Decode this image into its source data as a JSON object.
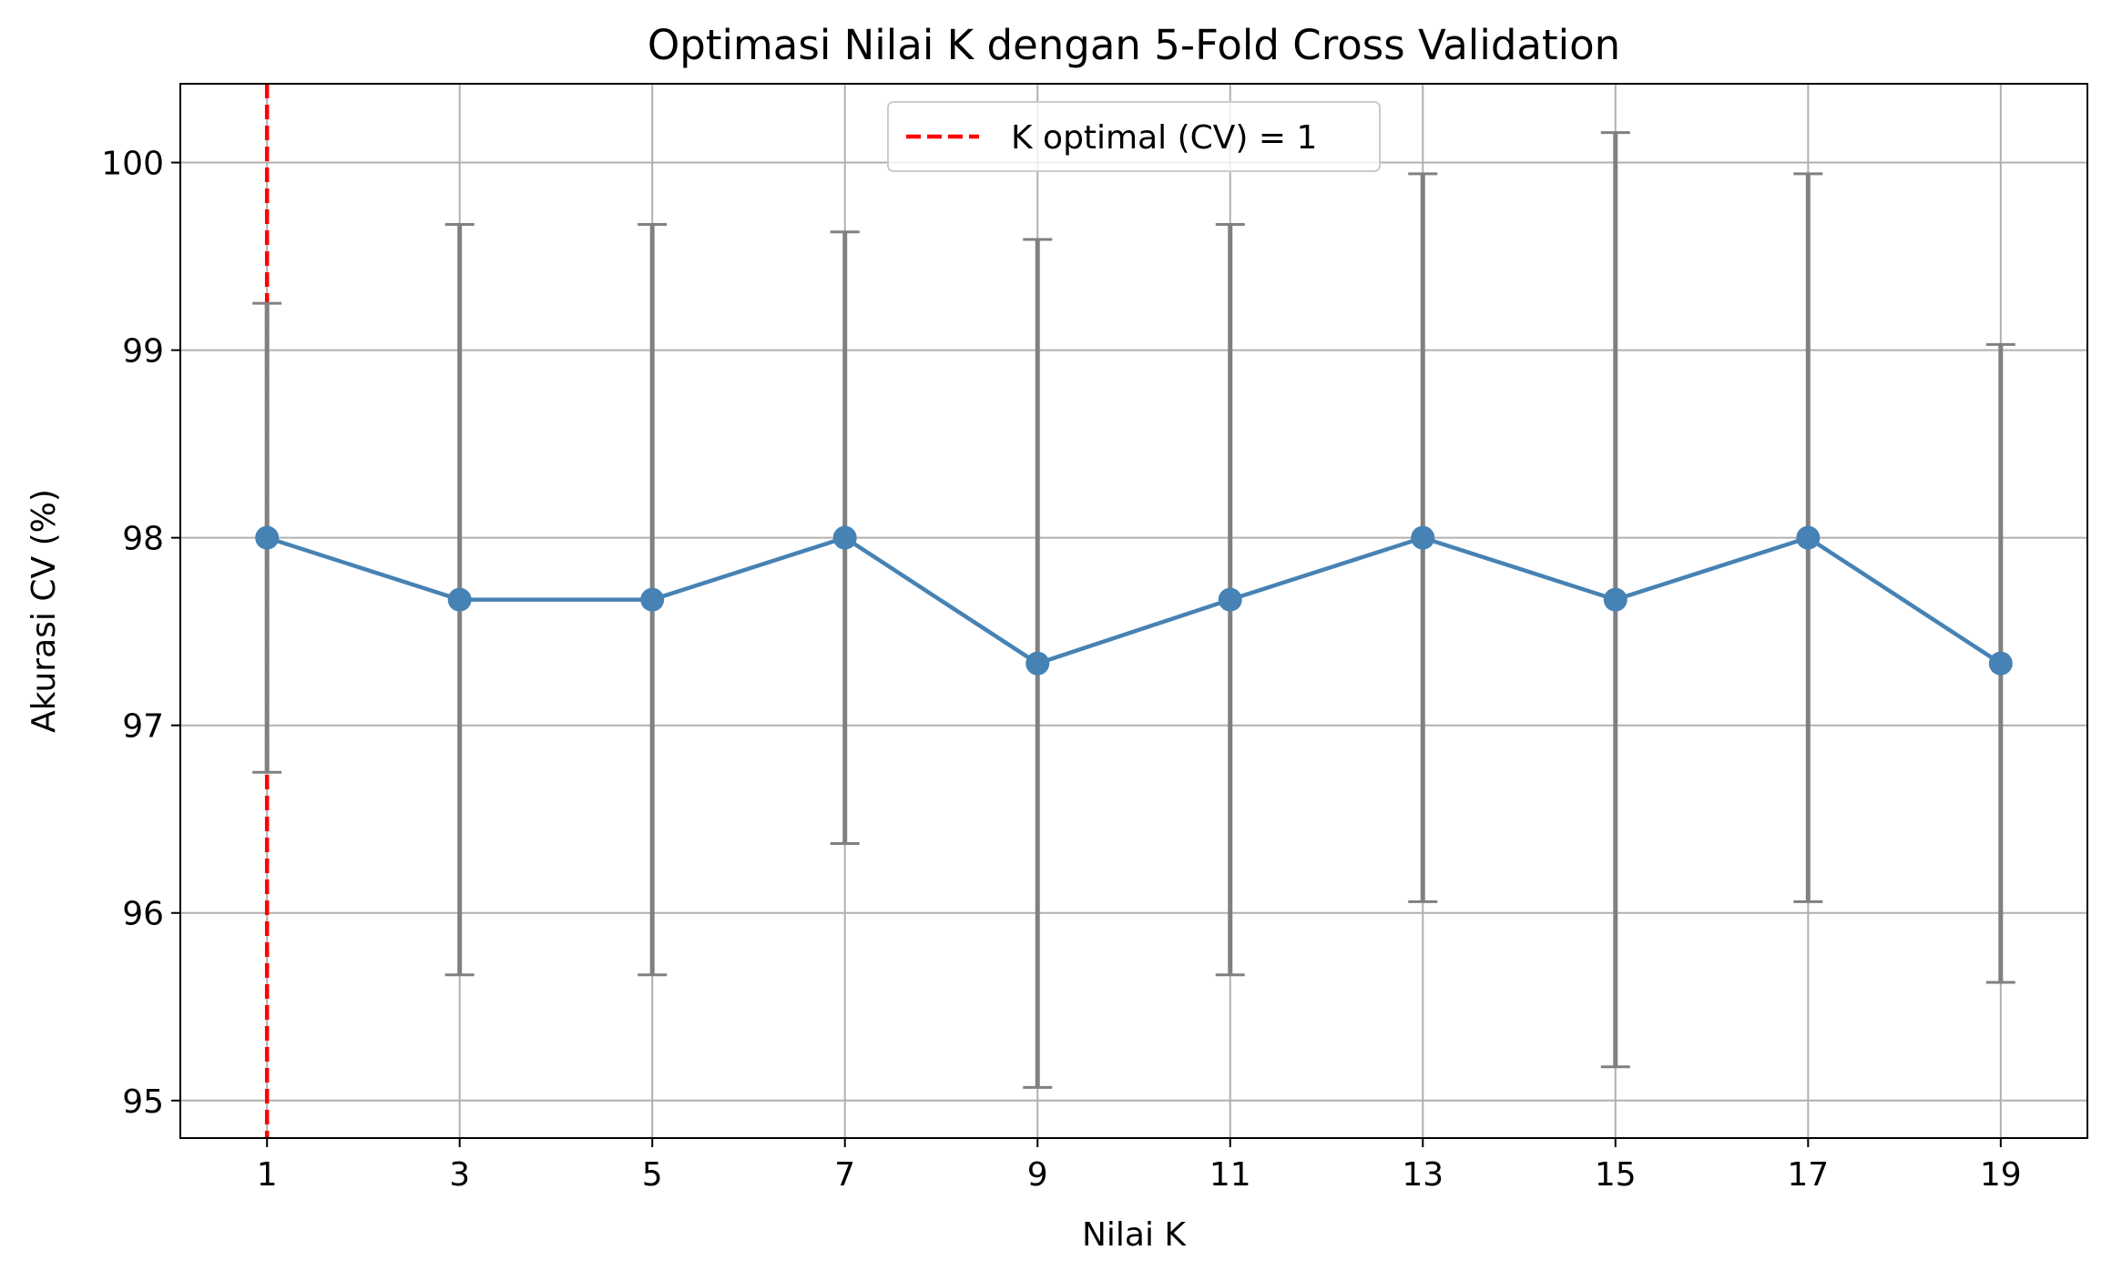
{
  "chart_data": {
    "type": "line",
    "title": "Optimasi Nilai K dengan 5-Fold Cross Validation",
    "xlabel": "Nilai K",
    "ylabel": "Akurasi CV (%)",
    "x": [
      1,
      3,
      5,
      7,
      9,
      11,
      13,
      15,
      17,
      19
    ],
    "x_ticks": [
      "1",
      "3",
      "5",
      "7",
      "9",
      "11",
      "13",
      "15",
      "17",
      "19"
    ],
    "xlim": [
      0.1,
      19.9
    ],
    "y_ticks": [
      "95",
      "96",
      "97",
      "98",
      "99",
      "100"
    ],
    "ylim": [
      94.8,
      100.42
    ],
    "grid": true,
    "series": [
      {
        "values": [
          98.0,
          97.67,
          97.67,
          98.0,
          97.33,
          97.67,
          98.0,
          97.67,
          98.0,
          97.33
        ],
        "errors": [
          1.25,
          2.0,
          2.0,
          1.63,
          2.26,
          2.0,
          1.94,
          2.49,
          1.94,
          1.7
        ],
        "color": "#4682b4",
        "error_color": "#808080"
      }
    ],
    "vline": {
      "x": 1,
      "color": "#ff0000",
      "style": "dashed"
    },
    "legend": {
      "position": "top-center",
      "entries": [
        {
          "label": "K optimal (CV) = 1",
          "color": "#ff0000",
          "style": "dashed"
        }
      ]
    }
  }
}
